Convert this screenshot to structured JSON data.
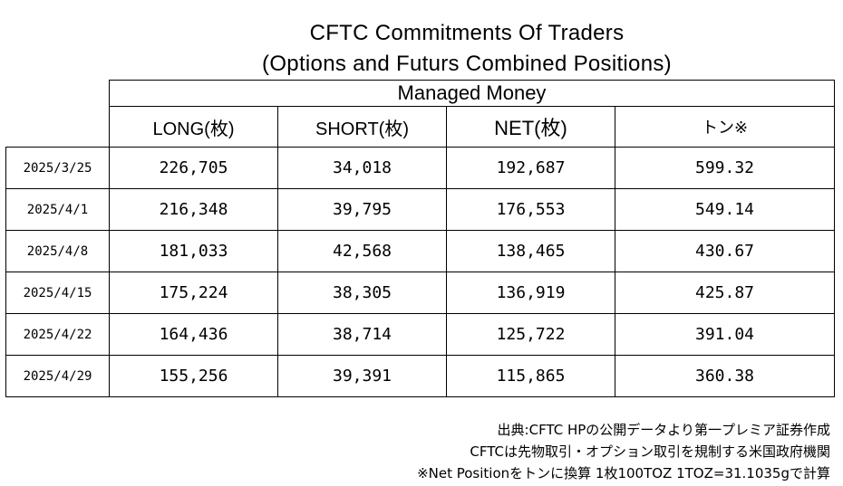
{
  "title": {
    "line1": "CFTC Commitments Of Traders",
    "line2": "(Options and Futurs Combined Positions)"
  },
  "table": {
    "group_header": "Managed Money",
    "columns": [
      "LONG(枚)",
      "SHORT(枚)",
      "NET(枚)",
      "トン※"
    ],
    "rows": [
      {
        "date": "2025/3/25",
        "long": "226,705",
        "short": "34,018",
        "net": "192,687",
        "ton": "599.32"
      },
      {
        "date": "2025/4/1",
        "long": "216,348",
        "short": "39,795",
        "net": "176,553",
        "ton": "549.14"
      },
      {
        "date": "2025/4/8",
        "long": "181,033",
        "short": "42,568",
        "net": "138,465",
        "ton": "430.67"
      },
      {
        "date": "2025/4/15",
        "long": "175,224",
        "short": "38,305",
        "net": "136,919",
        "ton": "425.87"
      },
      {
        "date": "2025/4/22",
        "long": "164,436",
        "short": "38,714",
        "net": "125,722",
        "ton": "391.04"
      },
      {
        "date": "2025/4/29",
        "long": "155,256",
        "short": "39,391",
        "net": "115,865",
        "ton": "360.38"
      }
    ]
  },
  "notes": [
    "出典:CFTC HPの公開データより第一プレミア証券作成",
    "CFTCは先物取引・オプション取引を規制する米国政府機関",
    "※Net Positionをトンに換算 1枚100TOZ 1TOZ=31.1035gで計算"
  ]
}
